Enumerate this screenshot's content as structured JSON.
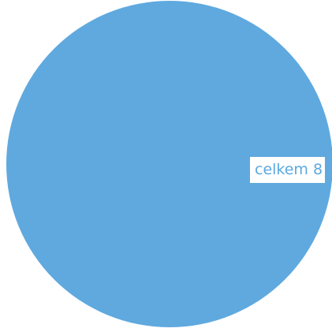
{
  "chart_data": {
    "type": "pie",
    "slices": [
      {
        "label": "celkem",
        "value": 8,
        "color": "#5fa9df"
      }
    ],
    "data_label": "celkem 8",
    "legend": "none"
  }
}
